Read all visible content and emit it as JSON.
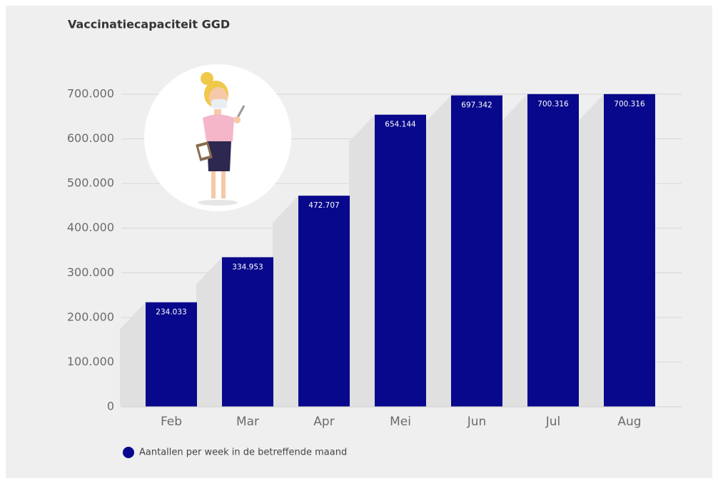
{
  "chart_data": {
    "type": "bar",
    "title": "Vaccinatiecapaciteit GGD",
    "categories": [
      "Feb",
      "Mar",
      "Apr",
      "Mei",
      "Jun",
      "Jul",
      "Aug"
    ],
    "series": [
      {
        "name": "Aantallen per week in de betreffende maand",
        "color": "#08088c",
        "values": [
          234033,
          334953,
          472707,
          654144,
          697342,
          700316,
          700316
        ],
        "value_labels": [
          "234.033",
          "334.953",
          "472.707",
          "654.144",
          "697.342",
          "700.316",
          "700.316"
        ]
      }
    ],
    "ylim": [
      0,
      700000
    ],
    "yticks": [
      0,
      {
        "value": 100000,
        "label": "100.000"
      },
      {
        "value": 200000,
        "label": "200.000"
      },
      {
        "value": 300000,
        "label": "300.000"
      },
      {
        "value": 400000,
        "label": "400.000"
      },
      {
        "value": 500000,
        "label": "500.000"
      },
      {
        "value": 600000,
        "label": "600.000"
      },
      {
        "value": 700000,
        "label": "700.000"
      }
    ],
    "grid": true,
    "legend": "bottom-left"
  }
}
